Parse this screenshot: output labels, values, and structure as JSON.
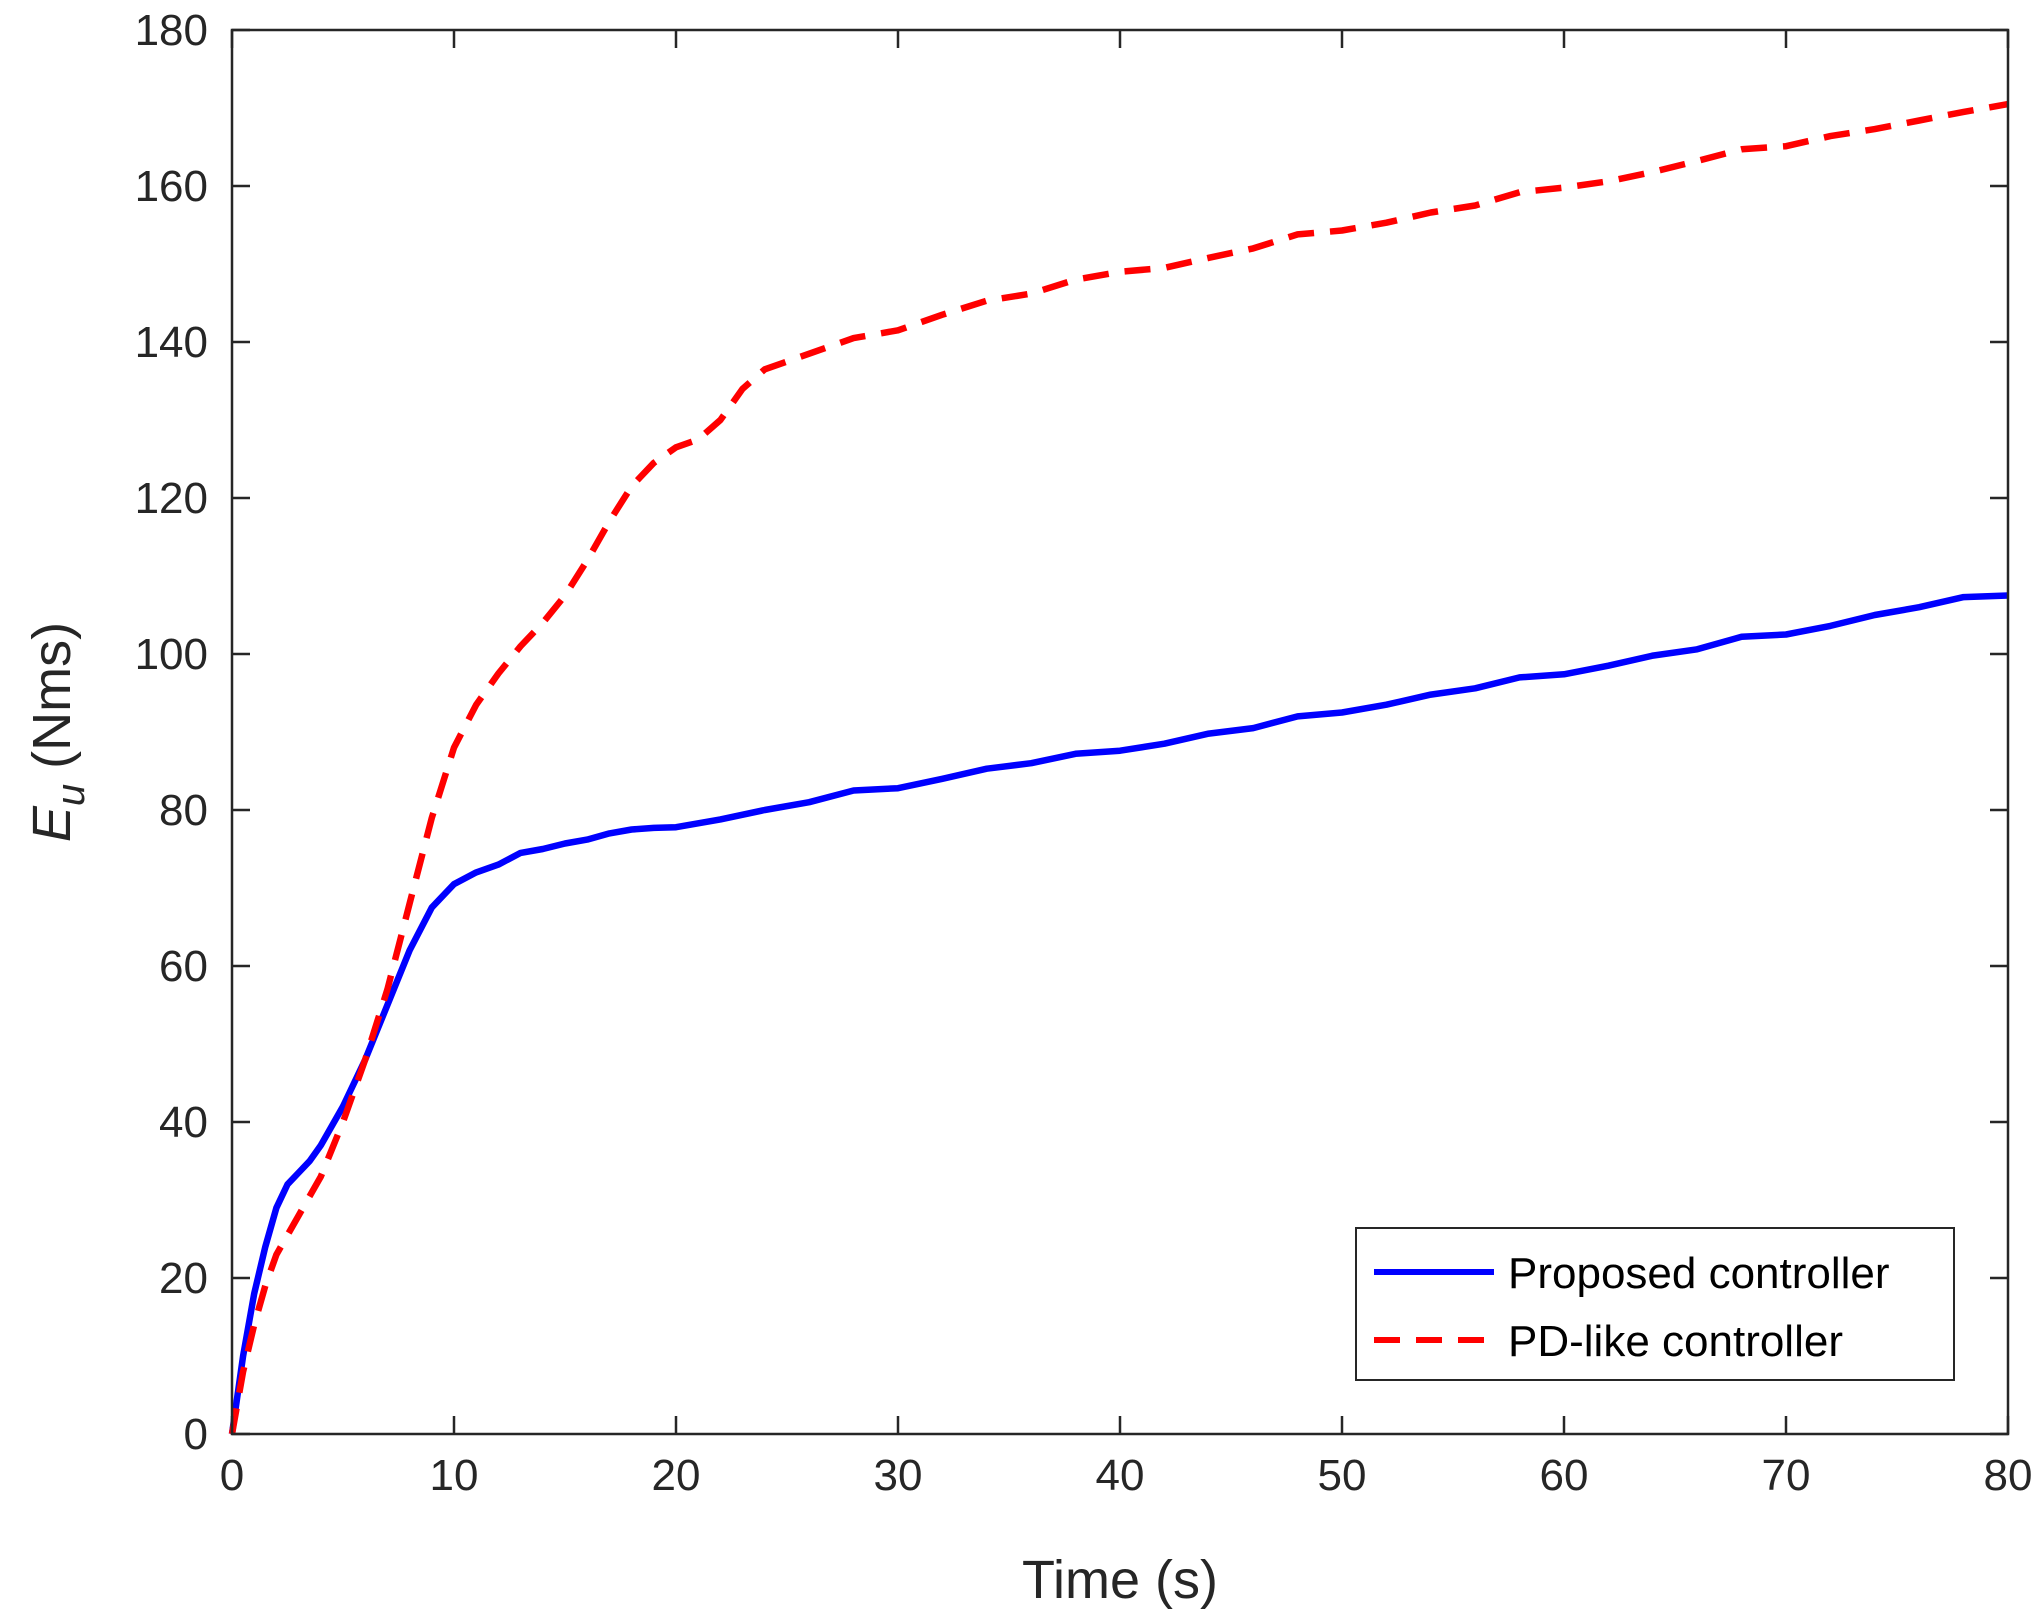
{
  "chart_data": {
    "type": "line",
    "title": "",
    "xlabel": "Time (s)",
    "ylabel_symbol": "E",
    "ylabel_subscript": "u",
    "ylabel_unit": " (Nms)",
    "xlim": [
      0,
      80
    ],
    "ylim": [
      0,
      180
    ],
    "xticks": [
      0,
      10,
      20,
      30,
      40,
      50,
      60,
      70,
      80
    ],
    "yticks": [
      0,
      20,
      40,
      60,
      80,
      100,
      120,
      140,
      160,
      180
    ],
    "grid": false,
    "legend_position": "bottom-right",
    "series": [
      {
        "name": "Proposed controller",
        "color": "#0000ff",
        "style": "solid",
        "x": [
          0,
          0.5,
          1,
          1.5,
          2,
          2.5,
          3,
          3.5,
          4,
          5,
          6,
          7,
          8,
          9,
          10,
          11,
          12,
          13,
          14,
          15,
          16,
          17,
          18,
          19,
          20,
          22,
          24,
          26,
          28,
          30,
          32,
          34,
          36,
          38,
          40,
          42,
          44,
          46,
          48,
          50,
          52,
          54,
          56,
          58,
          60,
          62,
          64,
          66,
          68,
          70,
          72,
          74,
          76,
          78,
          80
        ],
        "y": [
          0,
          10,
          18,
          24,
          29,
          32,
          33.5,
          35,
          37,
          42,
          48,
          55,
          62,
          67.5,
          70.5,
          72,
          73,
          74.5,
          75,
          75.7,
          76.2,
          77,
          77.5,
          77.7,
          77.8,
          78.8,
          80,
          81,
          82.5,
          82.8,
          84,
          85.3,
          86,
          87.2,
          87.6,
          88.5,
          89.8,
          90.5,
          92,
          92.5,
          93.5,
          94.8,
          95.6,
          97,
          97.4,
          98.5,
          99.8,
          100.6,
          102.2,
          102.5,
          103.6,
          105,
          106,
          107.3,
          107.5
        ]
      },
      {
        "name": "PD-like controller",
        "color": "#ff0000",
        "style": "dashed",
        "x": [
          0,
          0.5,
          1,
          1.5,
          2,
          3,
          4,
          5,
          6,
          7,
          8,
          9,
          10,
          11,
          12,
          13,
          14,
          15,
          16,
          17,
          18,
          19,
          20,
          21,
          22,
          23,
          24,
          25,
          26,
          28,
          30,
          32,
          34,
          36,
          38,
          40,
          42,
          44,
          46,
          48,
          50,
          52,
          54,
          56,
          58,
          60,
          62,
          64,
          66,
          68,
          70,
          72,
          74,
          76,
          78,
          80
        ],
        "y": [
          0,
          8,
          14,
          19,
          23,
          28,
          33,
          40,
          48,
          57,
          68,
          79,
          88,
          93.5,
          97.5,
          101,
          104,
          107.5,
          112,
          117,
          121.5,
          124.5,
          126.5,
          127.5,
          130,
          134,
          136.5,
          137.5,
          138.5,
          140.5,
          141.5,
          143.5,
          145.3,
          146.2,
          148,
          149,
          149.5,
          150.8,
          152,
          153.8,
          154.3,
          155.3,
          156.6,
          157.5,
          159.2,
          159.8,
          160.6,
          161.8,
          163.2,
          164.7,
          165.1,
          166.4,
          167.3,
          168.4,
          169.5,
          170.5
        ]
      }
    ]
  }
}
